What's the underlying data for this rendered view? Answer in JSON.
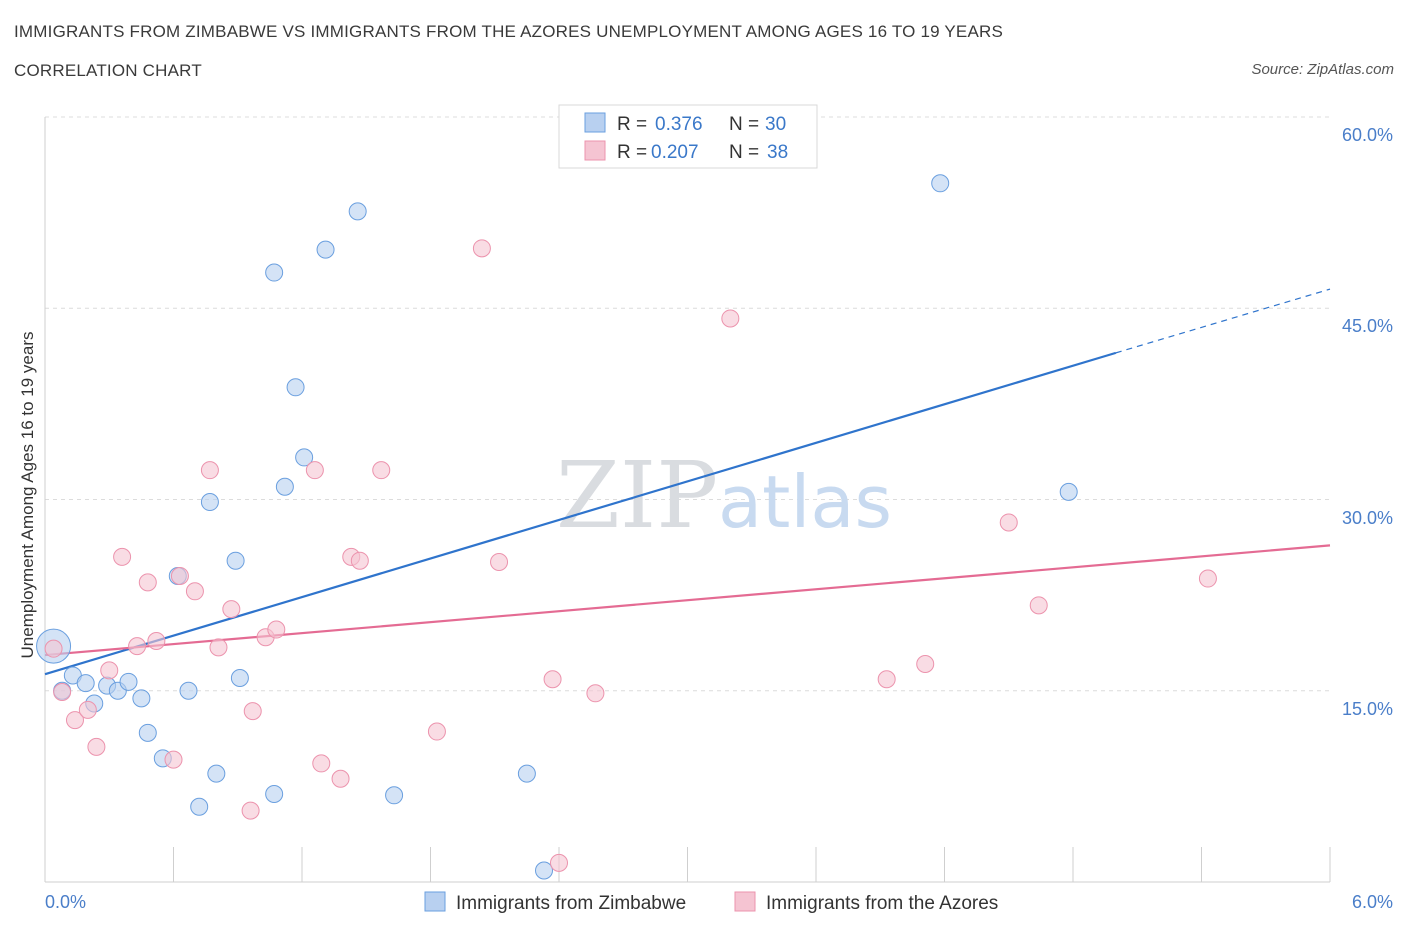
{
  "header": {
    "title": "IMMIGRANTS FROM ZIMBABWE VS IMMIGRANTS FROM THE AZORES UNEMPLOYMENT AMONG AGES 16 TO 19 YEARS",
    "subtitle": "CORRELATION CHART",
    "source": "Source: ZipAtlas.com"
  },
  "watermark": {
    "zip": "ZIP",
    "atlas": "atlas"
  },
  "legend": {
    "rows": [
      {
        "r_label": "R = ",
        "r_value": "0.376",
        "n_label": "N = ",
        "n_value": "30",
        "color": "#b8d0f0"
      },
      {
        "r_label": "R = ",
        "r_value": "0.207",
        "n_label": "N = ",
        "n_value": "38",
        "color": "#f5c4d2"
      }
    ]
  },
  "chart_data": {
    "type": "scatter",
    "title": "IMMIGRANTS FROM ZIMBABWE VS IMMIGRANTS FROM THE AZORES UNEMPLOYMENT AMONG AGES 16 TO 19 YEARS",
    "ylabel": "Unemployment Among Ages 16 to 19 years",
    "xlim": [
      0,
      6
    ],
    "ylim": [
      0,
      60
    ],
    "x_tick_labels": [
      "0.0%",
      "6.0%"
    ],
    "y_ticks": [
      15,
      30,
      45,
      60
    ],
    "y_tick_labels": [
      "15.0%",
      "30.0%",
      "45.0%",
      "60.0%"
    ],
    "grid": true,
    "legend_placement": "top-center",
    "series": [
      {
        "name": "Immigrants from Zimbabwe",
        "color": "#6a9fdf",
        "fill": "#b8d0f0",
        "line_color": "#2f74cc",
        "trend": {
          "x0": 0.0,
          "y0": 16.3,
          "x1": 5.0,
          "y1": 41.5,
          "x_dashed_end": 6.0,
          "y_dashed_end": 46.5
        },
        "points": [
          [
            0.04,
            18.5
          ],
          [
            0.08,
            15.0
          ],
          [
            0.13,
            16.2
          ],
          [
            0.19,
            15.6
          ],
          [
            0.23,
            14.0
          ],
          [
            0.29,
            15.4
          ],
          [
            0.34,
            15.0
          ],
          [
            0.39,
            15.7
          ],
          [
            0.45,
            14.4
          ],
          [
            0.48,
            11.7
          ],
          [
            0.55,
            9.7
          ],
          [
            0.62,
            24.0
          ],
          [
            0.67,
            15.0
          ],
          [
            0.72,
            5.9
          ],
          [
            0.77,
            29.8
          ],
          [
            0.8,
            8.5
          ],
          [
            0.89,
            25.2
          ],
          [
            0.91,
            16.0
          ],
          [
            1.07,
            6.9
          ],
          [
            1.07,
            47.8
          ],
          [
            1.12,
            31.0
          ],
          [
            1.17,
            38.8
          ],
          [
            1.21,
            33.3
          ],
          [
            1.31,
            49.6
          ],
          [
            1.46,
            52.6
          ],
          [
            1.63,
            6.8
          ],
          [
            2.25,
            8.5
          ],
          [
            2.33,
            0.9
          ],
          [
            4.18,
            54.8
          ],
          [
            4.78,
            30.6
          ]
        ],
        "sizes": [
          34,
          17,
          17,
          17,
          17,
          17,
          17,
          17,
          17,
          17,
          17,
          17,
          17,
          17,
          17,
          17,
          17,
          17,
          17,
          17,
          17,
          17,
          17,
          17,
          17,
          17,
          17,
          17,
          17,
          17
        ]
      },
      {
        "name": "Immigrants from the Azores",
        "color": "#ec93ad",
        "fill": "#f5c4d2",
        "line_color": "#e46b93",
        "trend": {
          "x0": 0.0,
          "y0": 17.8,
          "x1": 6.0,
          "y1": 26.4
        },
        "points": [
          [
            0.04,
            18.3
          ],
          [
            0.08,
            14.9
          ],
          [
            0.14,
            12.7
          ],
          [
            0.2,
            13.5
          ],
          [
            0.24,
            10.6
          ],
          [
            0.3,
            16.6
          ],
          [
            0.36,
            25.5
          ],
          [
            0.43,
            18.5
          ],
          [
            0.48,
            23.5
          ],
          [
            0.52,
            18.9
          ],
          [
            0.6,
            9.6
          ],
          [
            0.63,
            24.0
          ],
          [
            0.7,
            22.8
          ],
          [
            0.77,
            32.3
          ],
          [
            0.81,
            18.4
          ],
          [
            0.87,
            21.4
          ],
          [
            0.96,
            5.6
          ],
          [
            0.97,
            13.4
          ],
          [
            1.03,
            19.2
          ],
          [
            1.08,
            19.8
          ],
          [
            1.26,
            32.3
          ],
          [
            1.29,
            9.3
          ],
          [
            1.38,
            8.1
          ],
          [
            1.43,
            25.5
          ],
          [
            1.47,
            25.2
          ],
          [
            1.57,
            32.3
          ],
          [
            1.83,
            11.8
          ],
          [
            2.04,
            49.7
          ],
          [
            2.12,
            25.1
          ],
          [
            2.37,
            15.9
          ],
          [
            2.4,
            1.5
          ],
          [
            2.57,
            14.8
          ],
          [
            3.2,
            44.2
          ],
          [
            3.93,
            15.9
          ],
          [
            4.11,
            17.1
          ],
          [
            4.5,
            28.2
          ],
          [
            4.64,
            21.7
          ],
          [
            5.43,
            23.8
          ]
        ],
        "sizes": [
          17,
          17,
          17,
          17,
          17,
          17,
          17,
          17,
          17,
          17,
          17,
          17,
          17,
          17,
          17,
          17,
          17,
          17,
          17,
          17,
          17,
          17,
          17,
          17,
          17,
          17,
          17,
          17,
          17,
          17,
          17,
          17,
          17,
          17,
          17,
          17,
          17,
          17
        ]
      }
    ]
  }
}
